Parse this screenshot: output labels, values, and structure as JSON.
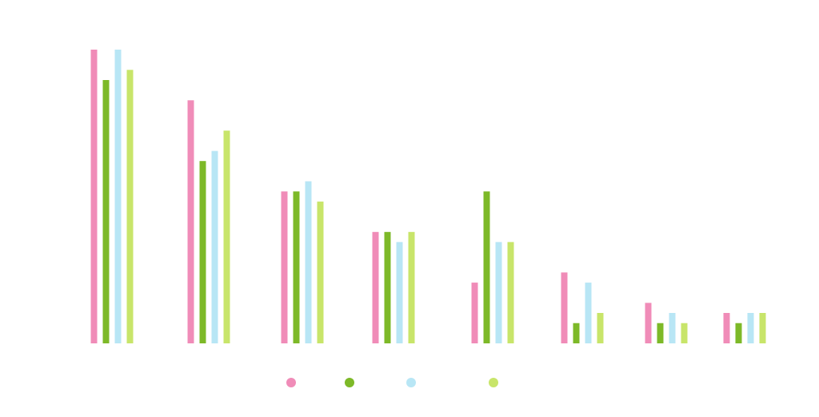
{
  "chart_data": {
    "type": "bar",
    "title": "",
    "xlabel": "",
    "ylabel": "",
    "categories": [
      "",
      "",
      "",
      "",
      "",
      "",
      "",
      ""
    ],
    "ylim": [
      0,
      29
    ],
    "grid": false,
    "legend": "bottom",
    "series": [
      {
        "color": "#f08cb8",
        "values": [
          29,
          24,
          15,
          11,
          6,
          7,
          4,
          3
        ]
      },
      {
        "color": "#7db928",
        "values": [
          26,
          18,
          15,
          11,
          15,
          2,
          2,
          2
        ]
      },
      {
        "color": "#b8e6f5",
        "values": [
          29,
          19,
          16,
          10,
          10,
          6,
          3,
          3
        ]
      },
      {
        "color": "#c8e56a",
        "values": [
          27,
          21,
          14,
          11,
          10,
          3,
          2,
          3
        ]
      }
    ]
  }
}
